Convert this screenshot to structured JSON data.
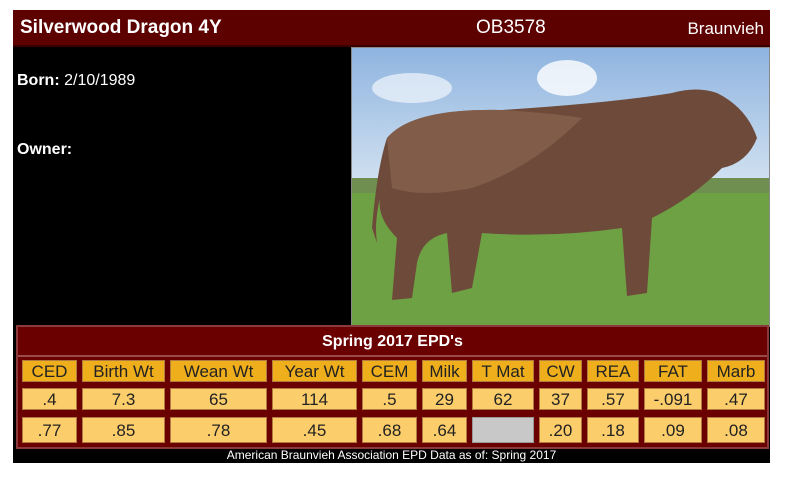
{
  "animal": {
    "name": "Silverwood Dragon 4Y",
    "registration": "OB3578",
    "breed": "Braunvieh"
  },
  "info": {
    "born_label": "Born:",
    "born_value": "2/10/1989",
    "owner_label": "Owner:",
    "owner_value": ""
  },
  "epd": {
    "title": "Spring 2017 EPD's",
    "headers": [
      "CED",
      "Birth Wt",
      "Wean Wt",
      "Year Wt",
      "CEM",
      "Milk",
      "T Mat",
      "CW",
      "REA",
      "FAT",
      "Marb"
    ],
    "values": [
      ".4",
      "7.3",
      "65",
      "114",
      ".5",
      "29",
      "62",
      "37",
      ".57",
      "-.091",
      ".47"
    ],
    "accuracy": [
      ".77",
      ".85",
      ".78",
      ".45",
      ".68",
      ".64",
      "",
      ".20",
      ".18",
      ".09",
      ".08"
    ]
  },
  "footer": "American Braunvieh Association EPD Data as of: Spring 2017",
  "colors": {
    "header_bg": "#5c0000",
    "cell_header": "#efae1c",
    "cell_value": "#fccd6b"
  }
}
